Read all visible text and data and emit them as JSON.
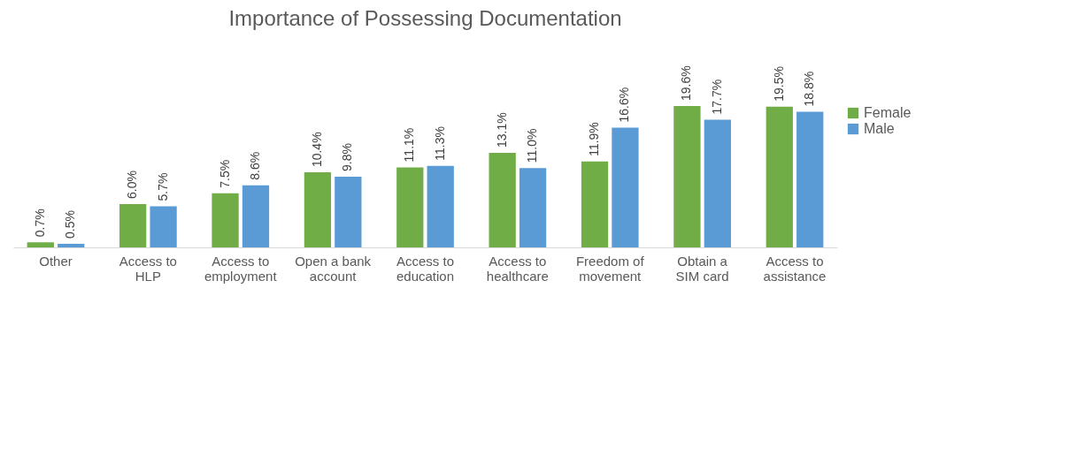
{
  "chart_data": {
    "type": "bar",
    "title": "Importance of Possessing Documentation",
    "categories": [
      "Other",
      "Access to HLP",
      "Access to employment",
      "Open a bank account",
      "Access to education",
      "Access to healthcare",
      "Freedom of movement",
      "Obtain a SIM card",
      "Access to assistance"
    ],
    "series": [
      {
        "name": "Female",
        "color": "#70ad47",
        "values": [
          0.7,
          6.0,
          7.5,
          10.4,
          11.1,
          13.1,
          11.9,
          19.6,
          19.5
        ],
        "value_labels": [
          "0.7%",
          "6.0%",
          "7.5%",
          "10.4%",
          "11.1%",
          "13.1%",
          "11.9%",
          "19.6%",
          "19.5%"
        ]
      },
      {
        "name": "Male",
        "color": "#5b9bd5",
        "values": [
          0.5,
          5.7,
          8.6,
          9.8,
          11.3,
          11.0,
          16.6,
          17.7,
          18.8
        ],
        "value_labels": [
          "0.5%",
          "5.7%",
          "8.6%",
          "9.8%",
          "11.3%",
          "11.0%",
          "16.6%",
          "17.7%",
          "18.8%"
        ]
      }
    ],
    "legend": "right",
    "grid": false
  }
}
